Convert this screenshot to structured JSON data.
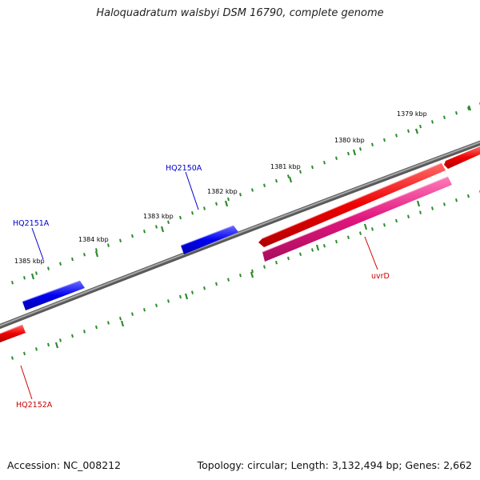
{
  "title": "Haloquadratum walsbyi DSM 16790, complete genome",
  "footer": {
    "accession": "Accession: NC_008212",
    "topology": "Topology: circular; Length: 3,132,494 bp; Genes: 2,662"
  },
  "colors": {
    "backbone": "#7a7a7a",
    "tick": "#2e8b2e",
    "forward_gene": "#0000ee",
    "reverse_gene": "#ee0000",
    "rna_or_cds": "#e0157d",
    "forward_label": "#0000cc",
    "reverse_label": "#cc0000"
  },
  "scale": {
    "outer_labels": [
      "1379 kbp",
      "1380 kbp",
      "1381 kbp",
      "1382 kbp",
      "1383 kbp",
      "1384 kbp",
      "1385 kbp"
    ]
  },
  "genes": {
    "hq2150a": "HQ2150A",
    "hq2151a": "HQ2151A",
    "hq2152a": "HQ2152A",
    "uvrd": "uvrD"
  }
}
